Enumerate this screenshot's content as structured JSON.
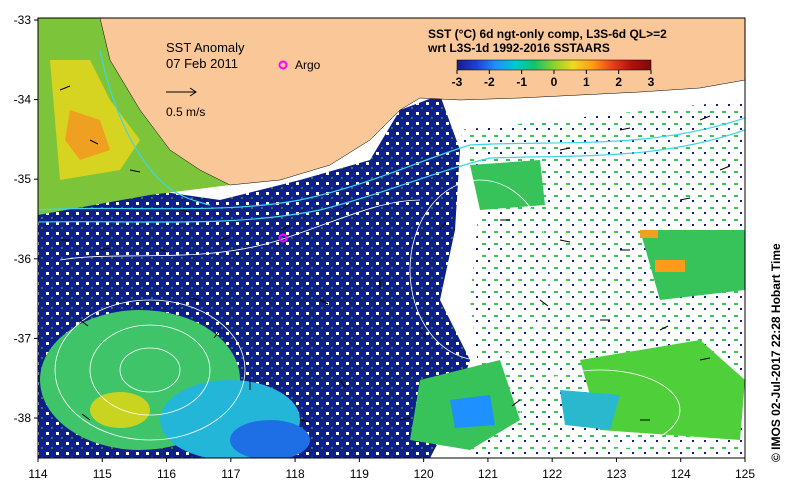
{
  "title": {
    "line1": "SST Anomaly",
    "line2": "07 Feb 2011",
    "scale_label": "0.5 m/s",
    "argo_label": "Argo"
  },
  "colorbar": {
    "caption_line1": "SST (°C) 6d ngt-only comp, L3S-6d QL>=2",
    "caption_line2": "wrt L3S-1d 1992-2016 SSTAARS",
    "ticks": [
      "-3",
      "-2",
      "-1",
      "0",
      "1",
      "2",
      "3"
    ],
    "colors": [
      "#1a1a8c",
      "#1f3fd6",
      "#1e90ff",
      "#00c8d2",
      "#11c46a",
      "#8fd02a",
      "#f0d820",
      "#ff9a1a",
      "#e8401a",
      "#b01010",
      "#7a0a0a"
    ]
  },
  "axes": {
    "lon_ticks": [
      "114",
      "115",
      "116",
      "117",
      "118",
      "119",
      "120",
      "121",
      "122",
      "123",
      "124",
      "125"
    ],
    "lat_ticks": [
      "-33",
      "-34",
      "-35",
      "-36",
      "-37",
      "-38"
    ]
  },
  "credit": "© IMOS 02-Jul-2017 22:28 Hobart Time",
  "colors": {
    "land": "#f9c798",
    "no_data": "#ffffff",
    "strong_cold": "#0d1f8c",
    "isobath": "#3ed6e6",
    "argo_marker": "#ff00ff"
  },
  "map_regions": {
    "land": "south-west Australia coast (top)",
    "legend_position": "top-right"
  }
}
